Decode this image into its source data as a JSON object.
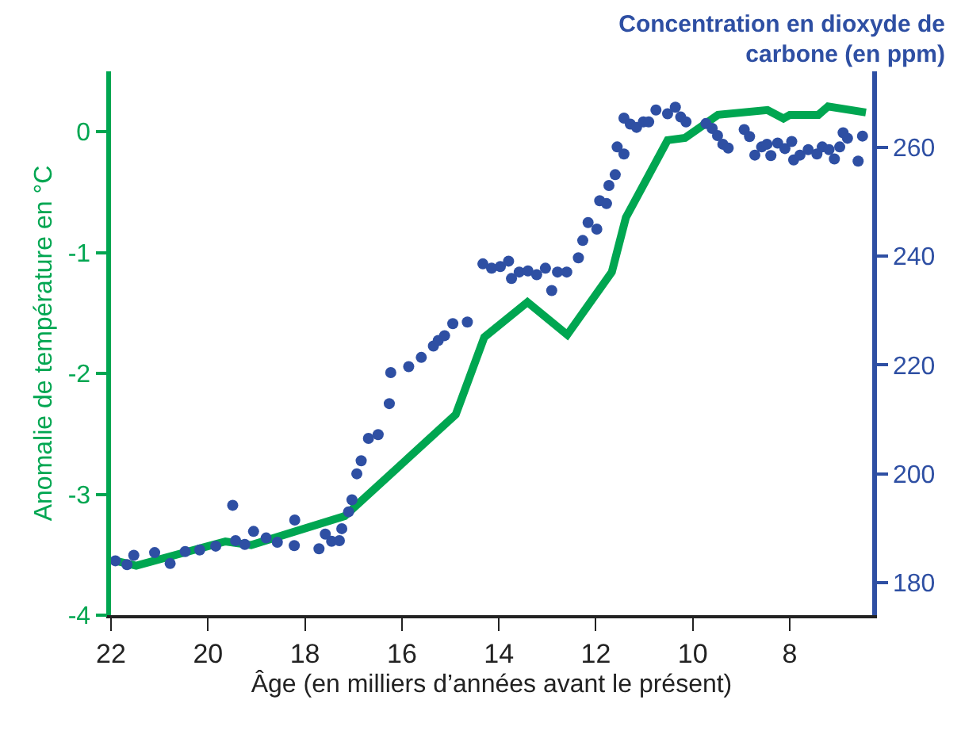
{
  "chart_data": {
    "type": "line",
    "xlabel": "Âge (en milliers d’années avant le présent)",
    "ylabel": "Anomalie de température en °C",
    "y2label": "Concentration en dioxyde de carbone (en ppm)",
    "xlim": [
      22,
      6.3
    ],
    "xticks": [
      22,
      20,
      18,
      16,
      14,
      12,
      10,
      8
    ],
    "ylim": [
      -4,
      0.5
    ],
    "yticks": [
      0,
      -1,
      -2,
      -3,
      -4
    ],
    "y2lim": [
      174,
      274
    ],
    "y2ticks": [
      180,
      200,
      220,
      240,
      260
    ],
    "grid": false,
    "series": [
      {
        "type": "scatter",
        "axis": "y2",
        "color": "#2e4fa3",
        "marker": "circle",
        "x": [
          21.91,
          21.67,
          21.53,
          21.1,
          20.78,
          20.47,
          20.17,
          19.84,
          19.49,
          19.43,
          19.24,
          19.06,
          18.8,
          18.57,
          18.22,
          18.21,
          17.71,
          17.58,
          17.45,
          17.29,
          17.24,
          17.1,
          17.03,
          16.93,
          16.84,
          16.69,
          16.49,
          16.26,
          16.23,
          15.86,
          15.6,
          15.35,
          15.25,
          15.12,
          14.95,
          14.65,
          14.33,
          14.15,
          13.97,
          13.8,
          13.74,
          13.58,
          13.4,
          13.22,
          13.04,
          12.91,
          12.79,
          12.6,
          12.36,
          12.27,
          12.16,
          11.98,
          11.92,
          11.78,
          11.73,
          11.6,
          11.56,
          11.42,
          11.42,
          11.29,
          11.16,
          11.02,
          10.91,
          10.76,
          10.52,
          10.36,
          10.25,
          10.14,
          9.73,
          9.6,
          9.49,
          9.38,
          9.27,
          8.94,
          8.83,
          8.72,
          8.58,
          8.47,
          8.39,
          8.25,
          8.1,
          7.96,
          7.92,
          7.79,
          7.62,
          7.44,
          7.33,
          7.19,
          7.08,
          6.97,
          6.9,
          6.81,
          6.59,
          6.5
        ],
        "values": [
          184.0,
          183.3,
          185.0,
          185.5,
          183.5,
          185.7,
          186.0,
          186.7,
          194.2,
          187.7,
          187.0,
          189.4,
          188.2,
          187.4,
          186.8,
          191.5,
          186.2,
          188.9,
          187.6,
          187.7,
          189.9,
          193.0,
          195.2,
          200.0,
          202.4,
          206.5,
          207.2,
          212.9,
          218.6,
          219.7,
          221.4,
          223.5,
          224.5,
          225.4,
          227.6,
          227.9,
          238.6,
          237.8,
          238.1,
          239.1,
          235.9,
          237.1,
          237.3,
          236.6,
          237.8,
          233.7,
          237.1,
          237.1,
          239.7,
          242.9,
          246.2,
          245.0,
          250.2,
          249.7,
          253.0,
          255.0,
          260.1,
          258.8,
          265.4,
          264.3,
          263.7,
          264.7,
          264.7,
          266.9,
          266.2,
          267.4,
          265.6,
          264.7,
          264.4,
          263.5,
          262.2,
          260.6,
          259.9,
          263.3,
          262.0,
          258.6,
          260.1,
          260.6,
          258.5,
          260.8,
          259.8,
          261.1,
          257.7,
          258.6,
          259.6,
          258.8,
          260.1,
          259.6,
          257.9,
          260.1,
          262.7,
          261.7,
          257.5,
          262.1
        ]
      },
      {
        "color": "#00a651",
        "marker": "none",
        "line_style": "solid",
        "x": [
          21.91,
          21.48,
          19.64,
          19.11,
          17.18,
          14.89,
          14.3,
          13.41,
          12.59,
          11.67,
          11.38,
          10.52,
          10.16,
          9.48,
          8.46,
          8.13,
          8.0,
          7.41,
          7.21,
          6.43
        ],
        "values": [
          -3.55,
          -3.59,
          -3.39,
          -3.42,
          -3.18,
          -2.34,
          -1.7,
          -1.41,
          -1.68,
          -1.16,
          -0.71,
          -0.07,
          -0.05,
          0.14,
          0.18,
          0.11,
          0.14,
          0.14,
          0.21,
          0.16
        ]
      }
    ]
  }
}
